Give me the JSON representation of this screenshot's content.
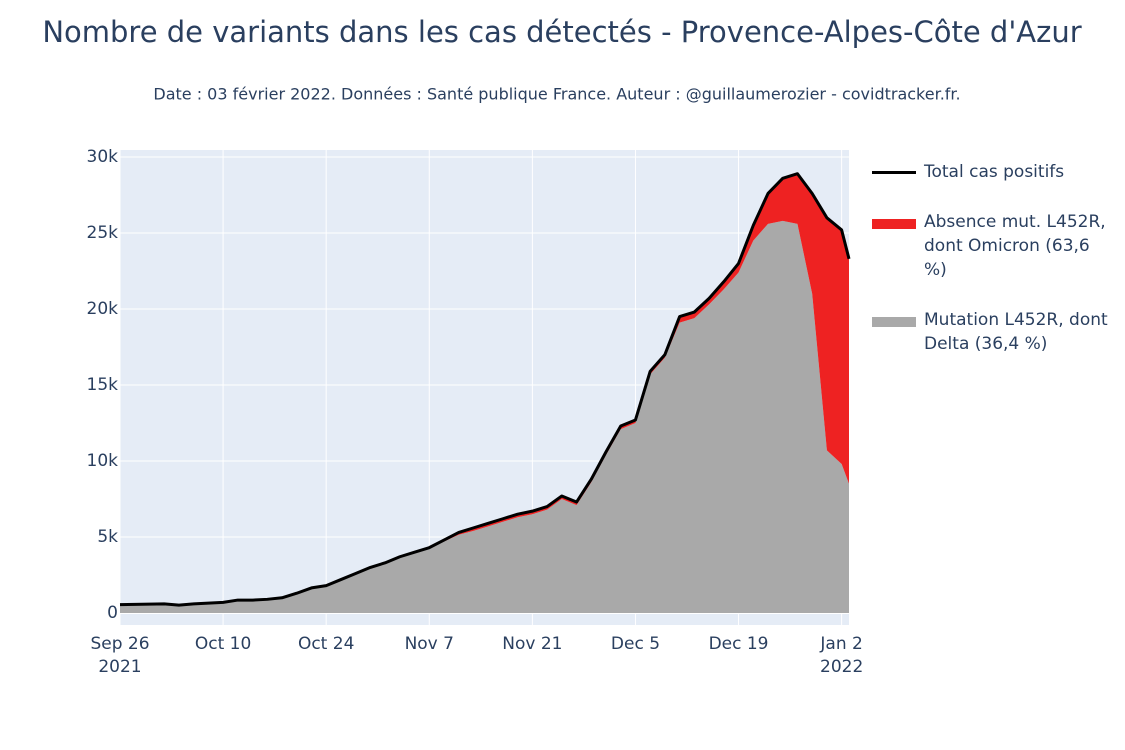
{
  "chart_data": {
    "type": "stacked_area",
    "title": "Nombre de variants dans les cas détectés - Provence-Alpes-Côte d'Azur",
    "subtitle": "Date : 03 février 2022. Données : Santé publique France. Auteur : @guillaumerozier - covidtracker.fr.",
    "x": [
      "2021-09-26",
      "2021-09-28",
      "2021-09-30",
      "2021-10-02",
      "2021-10-04",
      "2021-10-06",
      "2021-10-08",
      "2021-10-10",
      "2021-10-12",
      "2021-10-14",
      "2021-10-16",
      "2021-10-18",
      "2021-10-20",
      "2021-10-22",
      "2021-10-24",
      "2021-10-26",
      "2021-10-28",
      "2021-10-30",
      "2021-11-01",
      "2021-11-03",
      "2021-11-05",
      "2021-11-07",
      "2021-11-09",
      "2021-11-11",
      "2021-11-13",
      "2021-11-15",
      "2021-11-17",
      "2021-11-19",
      "2021-11-21",
      "2021-11-23",
      "2021-11-25",
      "2021-11-27",
      "2021-11-29",
      "2021-12-01",
      "2021-12-03",
      "2021-12-05",
      "2021-12-07",
      "2021-12-09",
      "2021-12-11",
      "2021-12-13",
      "2021-12-15",
      "2021-12-17",
      "2021-12-19",
      "2021-12-21",
      "2021-12-23",
      "2021-12-25",
      "2021-12-27",
      "2021-12-29",
      "2021-12-31",
      "2022-01-02",
      "2022-01-03"
    ],
    "series": [
      {
        "name": "Mutation L452R, dont Delta (36,4 %)",
        "color": "#a9a9a9",
        "kind": "area",
        "values": [
          550,
          570,
          580,
          600,
          520,
          600,
          650,
          700,
          850,
          850,
          900,
          1000,
          1300,
          1650,
          1800,
          2200,
          2600,
          3000,
          3300,
          3700,
          4000,
          4300,
          4700,
          5150,
          5400,
          5700,
          6000,
          6300,
          6500,
          6800,
          7500,
          7100,
          8600,
          10400,
          12100,
          12500,
          15700,
          16800,
          19100,
          19400,
          20300,
          21300,
          22400,
          24500,
          25600,
          25800,
          25600,
          21000,
          10700,
          9800,
          8500
        ]
      },
      {
        "name": "Absence mut. L452R, dont Omicron (63,6 %)",
        "color": "#ee2222",
        "kind": "area",
        "values": [
          0,
          0,
          0,
          0,
          0,
          0,
          0,
          0,
          0,
          0,
          0,
          0,
          0,
          0,
          0,
          0,
          0,
          0,
          0,
          0,
          0,
          0,
          100,
          150,
          200,
          200,
          200,
          200,
          200,
          200,
          200,
          200,
          200,
          200,
          200,
          200,
          200,
          200,
          400,
          400,
          400,
          500,
          600,
          1000,
          2000,
          2800,
          3300,
          6600,
          15300,
          15400,
          14800
        ]
      },
      {
        "name": "Total cas positifs",
        "color": "#000000",
        "kind": "line",
        "values": [
          550,
          570,
          580,
          600,
          520,
          600,
          650,
          700,
          850,
          850,
          900,
          1000,
          1300,
          1650,
          1800,
          2200,
          2600,
          3000,
          3300,
          3700,
          4000,
          4300,
          4800,
          5300,
          5600,
          5900,
          6200,
          6500,
          6700,
          7000,
          7700,
          7300,
          8800,
          10600,
          12300,
          12700,
          15900,
          17000,
          19500,
          19800,
          20700,
          21800,
          23000,
          25500,
          27600,
          28600,
          28900,
          27600,
          26000,
          25200,
          23300
        ]
      }
    ],
    "xlim": [
      "2021-09-26",
      "2022-01-03"
    ],
    "xticks": [
      {
        "value": "2021-09-26",
        "label": "Sep 26\n2021"
      },
      {
        "value": "2021-10-10",
        "label": "Oct 10"
      },
      {
        "value": "2021-10-24",
        "label": "Oct 24"
      },
      {
        "value": "2021-11-07",
        "label": "Nov 7"
      },
      {
        "value": "2021-11-21",
        "label": "Nov 21"
      },
      {
        "value": "2021-12-05",
        "label": "Dec 5"
      },
      {
        "value": "2021-12-19",
        "label": "Dec 19"
      },
      {
        "value": "2022-01-02",
        "label": "Jan 2\n2022"
      }
    ],
    "ylim": [
      -790,
      30460
    ],
    "yticks": [
      0,
      {
        "value": 5000,
        "label": "5k"
      },
      {
        "value": 10000,
        "label": "10k"
      },
      {
        "value": 15000,
        "label": "15k"
      },
      {
        "value": 20000,
        "label": "20k"
      },
      {
        "value": 25000,
        "label": "25k"
      },
      {
        "value": 30000,
        "label": "30k"
      }
    ],
    "grid": true
  }
}
